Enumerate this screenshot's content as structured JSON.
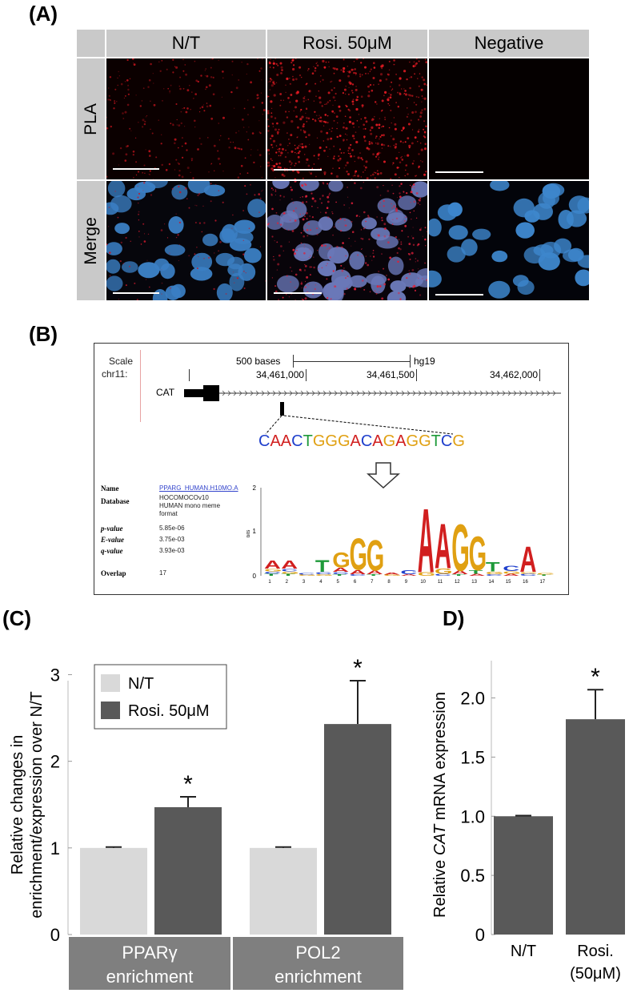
{
  "panel_a": {
    "letter": "(A)",
    "columns": [
      "N/T",
      "Rosi. 50μM",
      "Negative"
    ],
    "rows": [
      "PLA",
      "Merge"
    ]
  },
  "panel_b": {
    "letter": "(B)",
    "scale_label": "Scale",
    "chr_label": "chr11:",
    "scale_text": "500 bases",
    "genome": "hg19",
    "positions": [
      "34,461,000",
      "34,461,500",
      "34,462,000"
    ],
    "gene": "CAT",
    "sequence": [
      "C",
      "A",
      "A",
      "C",
      "T",
      "G",
      "G",
      "G",
      "A",
      "C",
      "A",
      "G",
      "A",
      "G",
      "G",
      "T",
      "C",
      "G"
    ],
    "meme": {
      "name_label": "Name",
      "name_value": "PPARG_HUMAN.H10MO.A",
      "database_label": "Database",
      "database_value": "HOCOMOCOv10 HUMAN mono meme format",
      "pvalue_label": "p-value",
      "pvalue_value": "5.85e-06",
      "evalue_label": "E-value",
      "evalue_value": "3.75e-03",
      "qvalue_label": "q-value",
      "qvalue_value": "3.93e-03",
      "overlap_label": "Overlap",
      "overlap_value": "17"
    },
    "logo_y_label": "bits",
    "logo_y_ticks": [
      "2",
      "1",
      "0"
    ],
    "logo_positions": [
      "1",
      "2",
      "3",
      "4",
      "5",
      "6",
      "7",
      "8",
      "9",
      "10",
      "11",
      "12",
      "13",
      "14",
      "15",
      "16",
      "17"
    ]
  },
  "chart_data": [
    {
      "type": "bar",
      "panel": "(C)",
      "ylabel": "Relative changes in enrichment/expression over N/T",
      "categories": [
        "PPARγ enrichment",
        "POL2 enrichment"
      ],
      "series": [
        {
          "name": "N/T",
          "values": [
            1.0,
            1.0
          ],
          "errors": [
            0.01,
            0.01
          ],
          "color": "#d9d9d9"
        },
        {
          "name": "Rosi. 50μM",
          "values": [
            1.47,
            2.43
          ],
          "errors": [
            0.12,
            0.5
          ],
          "color": "#595959"
        }
      ],
      "significance": [
        "*",
        "*"
      ],
      "ylim": [
        0,
        3.3
      ],
      "yticks": [
        "0",
        "1",
        "2",
        "3"
      ],
      "legend": "top-left"
    },
    {
      "type": "bar",
      "panel": "D)",
      "ylabel_pre": "Relative ",
      "ylabel_italic": "CAT",
      "ylabel_post": " mRNA expression",
      "categories": [
        "N/T",
        "Rosi."
      ],
      "category_sub": [
        "",
        "(50μM)"
      ],
      "values": [
        1.0,
        1.82
      ],
      "errors": [
        0.005,
        0.25
      ],
      "significance": [
        "",
        "*"
      ],
      "color": "#595959",
      "ylim": [
        0,
        2.2
      ],
      "yticks": [
        "0",
        "0.5",
        "1.0",
        "1.5",
        "2.0"
      ]
    }
  ]
}
